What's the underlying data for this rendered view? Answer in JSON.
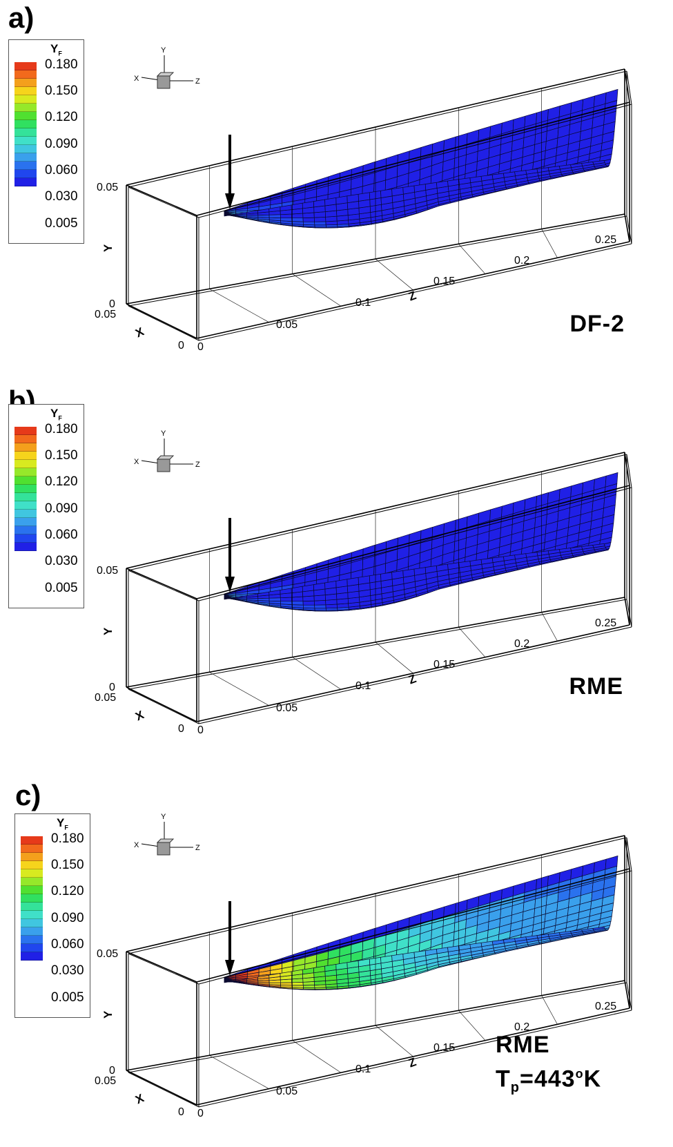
{
  "chart_data": [
    {
      "type": "3d-contour-surface",
      "panel": "a)",
      "label": "DF-2",
      "variable": "Y_F",
      "legend_title": "Y",
      "legend_subscript": "F",
      "legend_levels": [
        "0.180",
        "0.150",
        "0.120",
        "0.090",
        "0.060",
        "0.030",
        "0.005"
      ],
      "axes": {
        "x": "X",
        "y": "Y",
        "z": "Z",
        "x_ticks": [
          "0.05",
          "0"
        ],
        "y_ticks": [
          "0.05",
          "0"
        ],
        "z_ticks": [
          "0",
          "0.05",
          "0.1",
          "0.15",
          "0.2",
          "0.25"
        ]
      },
      "triad": {
        "x": "X",
        "y": "Y",
        "z": "Z"
      },
      "max_value_color": "#36b0ec"
    },
    {
      "type": "3d-contour-surface",
      "panel": "b)",
      "label": "RME",
      "variable": "Y_F",
      "legend_title": "Y",
      "legend_subscript": "F",
      "legend_levels": [
        "0.180",
        "0.150",
        "0.120",
        "0.090",
        "0.060",
        "0.030",
        "0.005"
      ],
      "axes": {
        "x": "X",
        "y": "Y",
        "z": "Z",
        "x_ticks": [
          "0.05",
          "0"
        ],
        "y_ticks": [
          "0.05",
          "0"
        ],
        "z_ticks": [
          "0",
          "0.05",
          "0.1",
          "0.15",
          "0.2",
          "0.25"
        ]
      },
      "triad": {
        "x": "X",
        "y": "Y",
        "z": "Z"
      },
      "max_value_color": "#36c8e6"
    },
    {
      "type": "3d-contour-surface",
      "panel": "c)",
      "label": "RME",
      "label_line2_prefix": "T",
      "label_line2_sub": "p",
      "label_line2_mid": "=443",
      "label_line2_sup": "o",
      "label_line2_suffix": "K",
      "variable": "Y_F",
      "legend_title": "Y",
      "legend_subscript": "F",
      "legend_levels": [
        "0.180",
        "0.150",
        "0.120",
        "0.090",
        "0.060",
        "0.030",
        "0.005"
      ],
      "axes": {
        "x": "X",
        "y": "Y",
        "z": "Z",
        "x_ticks": [
          "0.05",
          "0"
        ],
        "y_ticks": [
          "0.05",
          "0"
        ],
        "z_ticks": [
          "0",
          "0.05",
          "0.1",
          "0.15",
          "0.2",
          "0.25"
        ]
      },
      "triad": {
        "x": "X",
        "y": "Y",
        "z": "Z"
      },
      "max_value_color": "#e8361a"
    }
  ],
  "colormap": [
    "#2020e6",
    "#2046ee",
    "#2a72ee",
    "#3aa0ec",
    "#40c6e0",
    "#40e0c8",
    "#34e29a",
    "#30e060",
    "#50e030",
    "#96e82a",
    "#d8ea20",
    "#f6d41c",
    "#f4a01c",
    "#f26a1c",
    "#e63a1a"
  ]
}
